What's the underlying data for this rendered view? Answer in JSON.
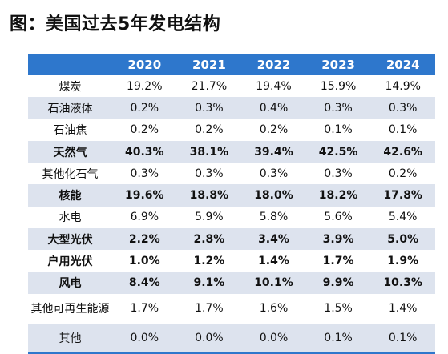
{
  "title": "图：美国过去5年发电结构",
  "table": {
    "years": [
      "2020",
      "2021",
      "2022",
      "2023",
      "2024"
    ],
    "rows": [
      {
        "label": "煤炭",
        "bold": false,
        "values": [
          "19.2%",
          "21.7%",
          "19.4%",
          "15.9%",
          "14.9%"
        ]
      },
      {
        "label": "石油液体",
        "bold": false,
        "values": [
          "0.2%",
          "0.3%",
          "0.4%",
          "0.3%",
          "0.3%"
        ]
      },
      {
        "label": "石油焦",
        "bold": false,
        "values": [
          "0.2%",
          "0.2%",
          "0.2%",
          "0.1%",
          "0.1%"
        ]
      },
      {
        "label": "天然气",
        "bold": true,
        "values": [
          "40.3%",
          "38.1%",
          "39.4%",
          "42.5%",
          "42.6%"
        ]
      },
      {
        "label": "其他化石气",
        "bold": false,
        "values": [
          "0.3%",
          "0.3%",
          "0.3%",
          "0.3%",
          "0.2%"
        ]
      },
      {
        "label": "核能",
        "bold": true,
        "values": [
          "19.6%",
          "18.8%",
          "18.0%",
          "18.2%",
          "17.8%"
        ]
      },
      {
        "label": "水电",
        "bold": false,
        "values": [
          "6.9%",
          "5.9%",
          "5.8%",
          "5.6%",
          "5.4%"
        ]
      },
      {
        "label": "大型光伏",
        "bold": true,
        "values": [
          "2.2%",
          "2.8%",
          "3.4%",
          "3.9%",
          "5.0%"
        ]
      },
      {
        "label": "户用光伏",
        "bold": true,
        "values": [
          "1.0%",
          "1.2%",
          "1.4%",
          "1.7%",
          "1.9%"
        ]
      },
      {
        "label": "风电",
        "bold": true,
        "values": [
          "8.4%",
          "9.1%",
          "10.1%",
          "9.9%",
          "10.3%"
        ]
      },
      {
        "label": "其他可再生能源",
        "bold": false,
        "values": [
          "1.7%",
          "1.7%",
          "1.6%",
          "1.5%",
          "1.4%"
        ]
      },
      {
        "label": "其他",
        "bold": false,
        "values": [
          "0.0%",
          "0.0%",
          "0.0%",
          "0.1%",
          "0.1%"
        ]
      }
    ]
  }
}
